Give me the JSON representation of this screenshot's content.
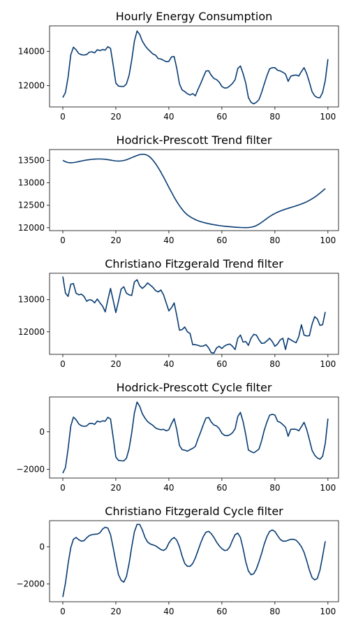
{
  "chart_data": [
    {
      "type": "line",
      "title": "Hourly Energy Consumption",
      "xlabel": "",
      "ylabel": "",
      "xlim": [
        -5,
        104
      ],
      "ylim": [
        10750,
        15500
      ],
      "xticks": [
        0,
        20,
        40,
        60,
        80,
        100
      ],
      "yticks": [
        12000,
        14000
      ],
      "color": "#073b72",
      "series": [
        {
          "x_start": 0,
          "values": [
            11300,
            11600,
            12500,
            13800,
            14250,
            14100,
            13880,
            13810,
            13790,
            13820,
            13960,
            13980,
            13920,
            14100,
            14050,
            14110,
            14080,
            14280,
            14180,
            13200,
            12150,
            11970,
            11950,
            11950,
            12100,
            12600,
            13500,
            14600,
            15200,
            15000,
            14600,
            14350,
            14150,
            14000,
            13850,
            13780,
            13580,
            13560,
            13480,
            13400,
            13420,
            13680,
            13700,
            13000,
            12100,
            11750,
            11650,
            11520,
            11450,
            11530,
            11400,
            11780,
            12120,
            12500,
            12850,
            12870,
            12600,
            12420,
            12350,
            12200,
            11950,
            11860,
            11870,
            11980,
            12130,
            12350,
            13000,
            13150,
            12700,
            12150,
            11300,
            11020,
            10930,
            11020,
            11180,
            11600,
            12100,
            12580,
            12980,
            13050,
            13050,
            12900,
            12860,
            12780,
            12680,
            12250,
            12550,
            12600,
            12620,
            12560,
            12820,
            13050,
            12700,
            12200,
            11650,
            11400,
            11300,
            11290,
            11600,
            12300,
            13550
          ]
        }
      ]
    },
    {
      "type": "line",
      "title": "Hodrick-Prescott Trend filter",
      "xlabel": "",
      "ylabel": "",
      "xlim": [
        -5,
        104
      ],
      "ylim": [
        11935,
        13740
      ],
      "xticks": [
        0,
        20,
        40,
        60,
        80,
        100
      ],
      "yticks": [
        12000,
        12500,
        13000,
        13500
      ],
      "color": "#073b72",
      "series": [
        {
          "x_start": 0,
          "values": [
            13500,
            13470,
            13450,
            13445,
            13450,
            13460,
            13472,
            13485,
            13497,
            13507,
            13515,
            13522,
            13527,
            13530,
            13530,
            13528,
            13523,
            13515,
            13505,
            13495,
            13487,
            13484,
            13487,
            13497,
            13513,
            13535,
            13560,
            13585,
            13608,
            13627,
            13637,
            13632,
            13609,
            13566,
            13503,
            13425,
            13335,
            13235,
            13128,
            13015,
            12900,
            12790,
            12680,
            12580,
            12490,
            12410,
            12340,
            12285,
            12245,
            12210,
            12180,
            12155,
            12135,
            12118,
            12103,
            12090,
            12078,
            12067,
            12057,
            12048,
            12040,
            12033,
            12027,
            12022,
            12017,
            12012,
            12008,
            12005,
            12003,
            12002,
            12004,
            12011,
            12025,
            12048,
            12080,
            12120,
            12163,
            12207,
            12248,
            12285,
            12317,
            12345,
            12370,
            12393,
            12413,
            12432,
            12450,
            12468,
            12487,
            12507,
            12528,
            12551,
            12578,
            12609,
            12643,
            12681,
            12723,
            12770,
            12820,
            12870
          ]
        }
      ]
    },
    {
      "type": "line",
      "title": "Christiano Fitzgerald Trend filter",
      "xlabel": "",
      "ylabel": "",
      "xlim": [
        -5,
        104
      ],
      "ylim": [
        11300,
        13820
      ],
      "xticks": [
        0,
        20,
        40,
        60,
        80,
        100
      ],
      "yticks": [
        12000,
        13000
      ],
      "color": "#073b72",
      "series": [
        {
          "x_start": 0,
          "values": [
            13720,
            13200,
            13100,
            13480,
            13500,
            13200,
            13150,
            13170,
            13100,
            12950,
            13000,
            12980,
            12900,
            13020,
            12900,
            12800,
            12620,
            13000,
            13350,
            12980,
            12600,
            12950,
            13330,
            13400,
            13200,
            13150,
            13130,
            13550,
            13620,
            13430,
            13350,
            13420,
            13520,
            13450,
            13380,
            13280,
            13240,
            13300,
            13150,
            12900,
            12650,
            12750,
            12900,
            12500,
            12050,
            12070,
            12150,
            12000,
            11950,
            11600,
            11600,
            11580,
            11550,
            11560,
            11600,
            11500,
            11350,
            11340,
            11500,
            11550,
            11480,
            11560,
            11600,
            11620,
            11550,
            11450,
            11800,
            11900,
            11680,
            11700,
            11580,
            11800,
            11920,
            11900,
            11750,
            11640,
            11650,
            11720,
            11800,
            11700,
            11550,
            11620,
            11750,
            11800,
            11450,
            11800,
            11750,
            11700,
            11660,
            11850,
            12220,
            11900,
            11870,
            11880,
            12230,
            12470,
            12400,
            12200,
            12220,
            12620
          ]
        }
      ]
    },
    {
      "type": "line",
      "title": "Hodrick-Prescott Cycle filter",
      "xlabel": "",
      "ylabel": "",
      "xlim": [
        -5,
        104
      ],
      "ylim": [
        -2460,
        1850
      ],
      "xticks": [
        0,
        20,
        40,
        60,
        80,
        100
      ],
      "yticks": [
        -2000,
        0
      ],
      "color": "#073b72",
      "series": [
        {
          "x_start": 0,
          "values": [
            -2200,
            -1900,
            -900,
            300,
            780,
            640,
            420,
            320,
            290,
            310,
            440,
            450,
            390,
            570,
            520,
            580,
            560,
            770,
            680,
            -300,
            -1340,
            -1520,
            -1540,
            -1550,
            -1410,
            -900,
            -50,
            1000,
            1580,
            1350,
            960,
            720,
            540,
            430,
            340,
            200,
            140,
            110,
            130,
            50,
            110,
            430,
            700,
            100,
            -730,
            -950,
            -980,
            -1030,
            -950,
            -880,
            -780,
            -370,
            -10,
            380,
            730,
            760,
            520,
            360,
            310,
            170,
            -80,
            -190,
            -210,
            -160,
            -50,
            160,
            810,
            1030,
            540,
            -150,
            -970,
            -1050,
            -1120,
            -1030,
            -920,
            -470,
            90,
            520,
            880,
            930,
            890,
            560,
            500,
            380,
            240,
            -240,
            130,
            140,
            130,
            50,
            270,
            500,
            120,
            -409,
            -980,
            -1245,
            -1390,
            -1460,
            -1300,
            -620,
            700
          ]
        }
      ]
    },
    {
      "type": "line",
      "title": "Christiano Fitzgerald Cycle filter",
      "xlabel": "",
      "ylabel": "",
      "xlim": [
        -5,
        104
      ],
      "ylim": [
        -2950,
        1400
      ],
      "xticks": [
        0,
        20,
        40,
        60,
        80,
        100
      ],
      "yticks": [
        -2000,
        0
      ],
      "color": "#073b72",
      "series": [
        {
          "x_start": 0,
          "values": [
            -2700,
            -1950,
            -900,
            -50,
            400,
            500,
            380,
            300,
            330,
            480,
            600,
            650,
            670,
            680,
            750,
            950,
            1050,
            1000,
            650,
            -50,
            -800,
            -1500,
            -1800,
            -1900,
            -1600,
            -900,
            0,
            800,
            1200,
            1200,
            900,
            500,
            250,
            150,
            100,
            50,
            -50,
            -150,
            -200,
            -100,
            200,
            400,
            500,
            350,
            0,
            -500,
            -900,
            -1050,
            -1050,
            -900,
            -600,
            -200,
            200,
            550,
            780,
            830,
            700,
            500,
            250,
            50,
            -100,
            -200,
            -180,
            0,
            350,
            650,
            730,
            500,
            -100,
            -800,
            -1300,
            -1500,
            -1450,
            -1200,
            -800,
            -350,
            150,
            550,
            820,
            900,
            820,
            600,
            400,
            300,
            300,
            350,
            400,
            400,
            350,
            200,
            0,
            -300,
            -750,
            -1250,
            -1650,
            -1780,
            -1700,
            -1250,
            -500,
            300
          ]
        }
      ]
    }
  ]
}
